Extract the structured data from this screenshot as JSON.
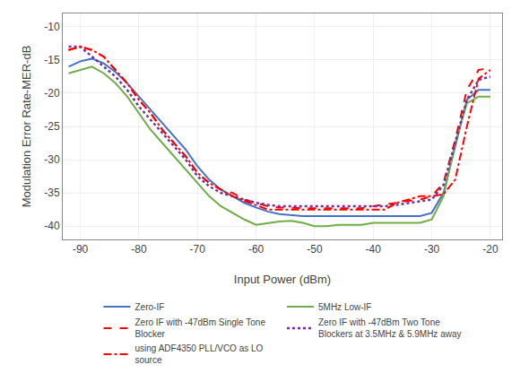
{
  "chart_data": {
    "type": "line",
    "title": "",
    "xlabel": "Input Power (dBm)",
    "ylabel": "Modulation Error Rate-MER-dB",
    "x": [
      -92,
      -90,
      -88,
      -86,
      -84,
      -82,
      -80,
      -78,
      -76,
      -74,
      -72,
      -70,
      -68,
      -66,
      -64,
      -62,
      -60,
      -58,
      -56,
      -54,
      -52,
      -50,
      -48,
      -46,
      -44,
      -42,
      -40,
      -38,
      -36,
      -34,
      -32,
      -30,
      -28,
      -26,
      -24,
      -22,
      -20
    ],
    "series": [
      {
        "name": "Zero-IF",
        "color": "#4472c4",
        "line_style": "solid",
        "values": [
          -16.0,
          -15.2,
          -14.8,
          -15.5,
          -16.8,
          -18.5,
          -20.5,
          -22.5,
          -24.5,
          -26.5,
          -28.5,
          -31.0,
          -33.0,
          -34.5,
          -35.5,
          -36.5,
          -37.2,
          -37.8,
          -38.2,
          -38.4,
          -38.5,
          -38.5,
          -38.5,
          -38.5,
          -38.5,
          -38.5,
          -38.5,
          -38.5,
          -38.5,
          -38.5,
          -38.5,
          -38.0,
          -35.0,
          -28.0,
          -21.0,
          -19.5,
          -19.5
        ]
      },
      {
        "name": "5MHz Low-IF",
        "color": "#70ad47",
        "line_style": "solid",
        "values": [
          -17.0,
          -16.5,
          -16.0,
          -17.0,
          -18.5,
          -20.5,
          -23.0,
          -25.5,
          -27.5,
          -29.5,
          -31.5,
          -33.5,
          -35.5,
          -37.0,
          -38.0,
          -39.0,
          -39.8,
          -39.5,
          -39.3,
          -39.2,
          -39.5,
          -40.0,
          -40.0,
          -39.8,
          -39.8,
          -39.8,
          -39.5,
          -39.5,
          -39.5,
          -39.5,
          -39.5,
          -39.0,
          -35.5,
          -27.5,
          -21.5,
          -20.5,
          -20.5
        ]
      },
      {
        "name": "Zero IF with -47dBm Single Tone\nBlocker",
        "color": "#ff0000",
        "line_style": "dashed",
        "values": [
          -13.5,
          -13.0,
          -13.5,
          -14.5,
          -16.5,
          -18.5,
          -21.0,
          -23.0,
          -25.5,
          -27.5,
          -29.5,
          -32.0,
          -33.5,
          -34.5,
          -35.0,
          -36.0,
          -36.5,
          -37.0,
          -37.2,
          -37.3,
          -37.3,
          -37.3,
          -37.3,
          -37.3,
          -37.3,
          -37.3,
          -37.0,
          -36.8,
          -36.5,
          -36.2,
          -36.0,
          -35.5,
          -33.5,
          -27.0,
          -19.5,
          -16.5,
          -16.2
        ]
      },
      {
        "name": "Zero IF with -47dBm Two Tone\nBlockers at 3.5MHz & 5.9MHz away",
        "color": "#7030a0",
        "line_style": "dotted",
        "values": [
          -13.0,
          -13.0,
          -14.5,
          -16.0,
          -17.5,
          -19.5,
          -22.0,
          -24.0,
          -26.0,
          -28.0,
          -30.0,
          -32.5,
          -34.0,
          -35.0,
          -35.5,
          -36.0,
          -36.5,
          -36.8,
          -37.0,
          -37.0,
          -37.0,
          -37.0,
          -37.0,
          -37.0,
          -37.0,
          -37.0,
          -37.0,
          -37.0,
          -36.8,
          -36.5,
          -36.2,
          -36.0,
          -33.8,
          -27.5,
          -21.0,
          -18.0,
          -17.5
        ]
      },
      {
        "name": "using ADF4350 PLL/VCO as LO\nsource",
        "color": "#ff0000",
        "line_style": "dashdot",
        "values": [
          -13.5,
          -13.0,
          -13.5,
          -14.5,
          -16.5,
          -18.5,
          -21.0,
          -23.0,
          -25.5,
          -27.5,
          -29.5,
          -32.0,
          -33.5,
          -34.5,
          -35.5,
          -36.2,
          -36.8,
          -37.5,
          -37.5,
          -37.5,
          -37.5,
          -37.5,
          -37.5,
          -37.5,
          -37.5,
          -37.5,
          -37.5,
          -37.5,
          -36.5,
          -36.0,
          -35.5,
          -35.5,
          -35.2,
          -33.0,
          -25.0,
          -17.8,
          -16.5
        ]
      }
    ],
    "xlim": [
      -93,
      -18
    ],
    "ylim": [
      -42,
      -8
    ],
    "xticks": [
      -90,
      -80,
      -70,
      -60,
      -50,
      -40,
      -30,
      -20
    ],
    "yticks": [
      -40,
      -35,
      -30,
      -25,
      -20,
      -15,
      -10
    ],
    "grid": true,
    "legend": "bottom"
  }
}
